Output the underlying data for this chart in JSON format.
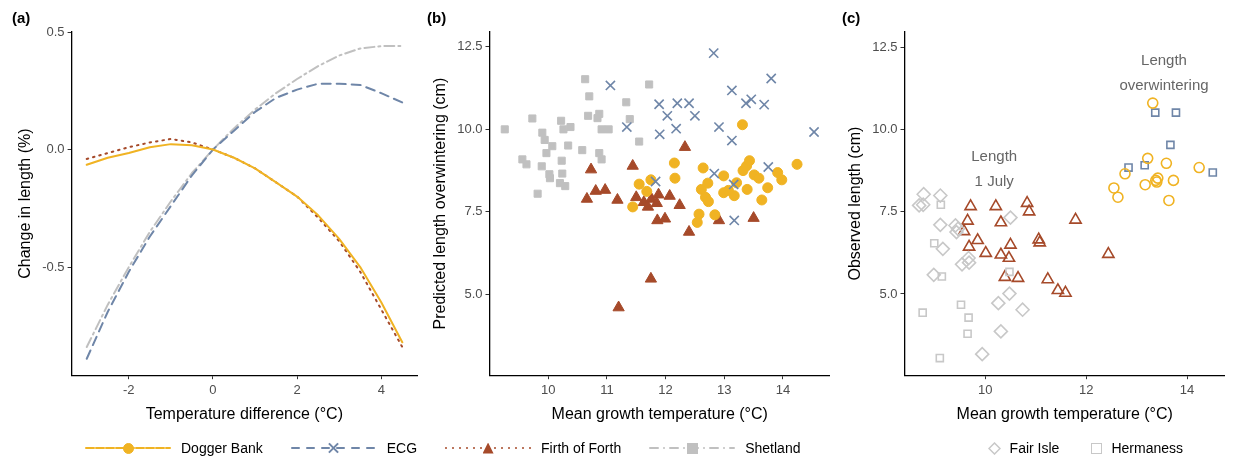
{
  "chart_data": [
    {
      "type": "line",
      "title": "(a)",
      "xlabel": "Temperature difference (°C)",
      "ylabel": "Change in length (%)",
      "xlim": [
        -3.36,
        4.85
      ],
      "ylim": [
        -0.96,
        0.5
      ],
      "xticks": [
        -2,
        0,
        2,
        4
      ],
      "yticks": [
        -0.5,
        {
          "value": 0,
          "label": "0.0"
        },
        0.5
      ],
      "x": [
        -3,
        -2.5,
        -2,
        -1.5,
        -1,
        -0.5,
        0,
        0.5,
        1,
        1.5,
        2,
        2.5,
        3,
        3.5,
        4,
        4.5
      ],
      "series": [
        {
          "color": "#f0b323",
          "line_style": "solid",
          "values": [
            -0.065,
            -0.035,
            -0.015,
            0.01,
            0.023,
            0.018,
            0,
            -0.035,
            -0.08,
            -0.14,
            -0.2,
            -0.28,
            -0.38,
            -0.5,
            -0.65,
            -0.82
          ]
        },
        {
          "color": "#6f86a8",
          "line_style": "dashed",
          "values": [
            -0.89,
            -0.69,
            -0.52,
            -0.37,
            -0.24,
            -0.11,
            0,
            0.08,
            0.16,
            0.22,
            0.255,
            0.28,
            0.28,
            0.275,
            0.24,
            0.2
          ]
        },
        {
          "color": "#a64a2a",
          "line_style": "dotted",
          "values": [
            -0.04,
            -0.015,
            0.01,
            0.03,
            0.045,
            0.03,
            0,
            -0.035,
            -0.08,
            -0.14,
            -0.2,
            -0.29,
            -0.39,
            -0.52,
            -0.68,
            -0.84
          ]
        },
        {
          "color": "#c0c0c0",
          "line_style": "dashdot",
          "values": [
            -0.84,
            -0.66,
            -0.5,
            -0.35,
            -0.22,
            -0.1,
            0,
            0.09,
            0.17,
            0.24,
            0.3,
            0.355,
            0.4,
            0.43,
            0.44,
            0.44
          ]
        }
      ]
    },
    {
      "type": "scatter",
      "title": "(b)",
      "xlabel": "Mean growth temperature (°C)",
      "ylabel": "Predicted length overwintering (cm)",
      "xlim": [
        9.0,
        14.8
      ],
      "ylim": [
        2.55,
        12.95
      ],
      "xticks": [
        10,
        11,
        12,
        13,
        14
      ],
      "yticks": [
        {
          "value": 5,
          "label": "5.0"
        },
        7.5,
        {
          "value": 10,
          "label": "10.0"
        },
        12.5
      ],
      "legend": "bottom",
      "series": [
        {
          "name": "Dogger Bank",
          "color": "#f0b323",
          "marker": "circle",
          "x": [
            11.44,
            11.55,
            11.68,
            11.75,
            12.15,
            12.16,
            12.64,
            12.61,
            12.72,
            12.68,
            12.73,
            12.57,
            12.54,
            12.84,
            12.99,
            12.99,
            13.17,
            13.21,
            13.07,
            13.31,
            13.32,
            13.38,
            13.43,
            13.39,
            13.51,
            13.59,
            13.74,
            13.64,
            13.91,
            13.98,
            14.24
          ],
          "values": [
            7.65,
            8.34,
            8.12,
            8.47,
            8.98,
            8.52,
            8.83,
            8.18,
            8.37,
            7.94,
            7.81,
            7.43,
            7.18,
            7.41,
            8.59,
            8.08,
            7.99,
            8.38,
            8.15,
            10.14,
            8.75,
            8.89,
            9.05,
            8.18,
            8.62,
            8.52,
            8.23,
            7.86,
            8.69,
            8.47,
            8.94
          ]
        },
        {
          "name": "ECG",
          "color": "#6f86a8",
          "marker": "cross",
          "x": [
            11.06,
            11.34,
            11.89,
            12.03,
            12.2,
            12.4,
            12.5,
            12.18,
            11.9,
            11.83,
            12.82,
            12.91,
            13.13,
            13.37,
            13.46,
            13.68,
            13.8,
            13.13,
            12.83,
            13.16,
            13.17,
            13.75,
            14.53
          ],
          "values": [
            11.33,
            10.07,
            10.76,
            10.41,
            10.79,
            10.79,
            10.41,
            10.02,
            9.85,
            8.42,
            12.31,
            10.07,
            11.18,
            10.79,
            10.91,
            10.75,
            11.54,
            9.66,
            8.66,
            8.33,
            7.24,
            8.86,
            9.92
          ]
        },
        {
          "name": "Firth of Forth",
          "color": "#a64a2a",
          "marker": "triangle",
          "x": [
            10.66,
            10.73,
            10.81,
            10.97,
            11.18,
            11.2,
            11.44,
            11.5,
            11.63,
            11.7,
            11.76,
            11.85,
            11.88,
            11.86,
            11.99,
            12.07,
            12.24,
            12.33,
            12.4,
            11.75,
            12.91,
            13.5
          ],
          "values": [
            7.89,
            8.78,
            8.13,
            8.16,
            7.86,
            4.6,
            8.89,
            7.94,
            7.79,
            7.65,
            7.89,
            7.76,
            8.02,
            7.24,
            7.29,
            7.98,
            7.7,
            9.46,
            6.89,
            5.47,
            7.24,
            7.31
          ]
        },
        {
          "name": "Shetland",
          "color": "#c0c0c0",
          "marker": "square",
          "x": [
            9.26,
            9.73,
            9.56,
            9.63,
            9.9,
            9.94,
            9.97,
            10.07,
            9.89,
            10.02,
            10.03,
            9.82,
            10.22,
            10.26,
            10.38,
            10.23,
            10.24,
            10.2,
            10.29,
            10.34,
            10.58,
            10.63,
            10.7,
            10.68,
            10.87,
            10.84,
            10.91,
            11.03,
            10.87,
            10.91,
            11.33,
            11.39,
            11.55,
            11.72
          ],
          "values": [
            10.0,
            10.33,
            9.09,
            8.94,
            9.9,
            9.68,
            9.28,
            9.49,
            8.88,
            8.64,
            8.52,
            8.05,
            10.26,
            10.0,
            10.07,
            9.05,
            8.66,
            8.37,
            8.28,
            9.51,
            9.37,
            11.52,
            11.0,
            10.41,
            10.47,
            10.34,
            10.0,
            10.0,
            9.28,
            9.09,
            10.82,
            10.31,
            9.63,
            11.36
          ]
        }
      ]
    },
    {
      "type": "scatter",
      "title": "(c)",
      "xlabel": "Mean growth temperature (°C)",
      "ylabel": "Observed length (cm)",
      "xlim": [
        8.4,
        14.75
      ],
      "ylim": [
        2.53,
        12.96
      ],
      "xticks": [
        10,
        12,
        14
      ],
      "yticks": [
        {
          "value": 5,
          "label": "5.0"
        },
        7.5,
        {
          "value": 10,
          "label": "10.0"
        },
        12.5
      ],
      "legend": "bottom",
      "annotations": [
        "Length\noverwintering",
        "Length\n1 July"
      ],
      "series": [
        {
          "name": "Fair Isle",
          "color": "#c8c8c8",
          "marker": "diamond",
          "x": [
            8.78,
            8.69,
            8.77,
            9.11,
            9.11,
            9.41,
            9.46,
            9.43,
            9.16,
            9.54,
            9.67,
            9.68,
            8.98,
            10.5,
            10.48,
            10.26,
            10.74,
            10.31,
            9.94
          ],
          "values": [
            8.03,
            7.69,
            7.71,
            7.99,
            7.1,
            7.08,
            6.98,
            6.88,
            6.37,
            5.9,
            6.09,
            5.95,
            5.58,
            7.32,
            5.01,
            4.72,
            4.52,
            3.86,
            3.17
          ]
        },
        {
          "name": "Hermaness",
          "color": "#c8c8c8",
          "marker": "square",
          "x": [
            9.12,
            8.99,
            9.14,
            8.76,
            9.52,
            9.67,
            9.65,
            9.1,
            10.48
          ],
          "values": [
            7.71,
            6.54,
            5.53,
            4.43,
            4.67,
            4.28,
            3.79,
            3.05,
            5.67
          ]
        },
        {
          "color": "#a64a2a",
          "marker": "triangle",
          "x": [
            9.71,
            9.65,
            9.58,
            9.68,
            9.85,
            10.01,
            10.21,
            10.31,
            10.31,
            10.47,
            10.5,
            10.39,
            10.65,
            10.83,
            10.87,
            11.06,
            11.08,
            11.24,
            11.44,
            11.59,
            11.79,
            12.44
          ],
          "values": [
            7.66,
            7.22,
            6.9,
            6.43,
            6.63,
            6.24,
            7.66,
            7.17,
            6.19,
            6.09,
            6.49,
            5.51,
            5.48,
            7.76,
            7.5,
            6.65,
            6.56,
            5.44,
            5.11,
            5.03,
            7.25,
            6.21
          ]
        },
        {
          "color": "#f0b323",
          "marker": "circle",
          "x": [
            13.32,
            12.77,
            13.22,
            12.55,
            12.63,
            13.17,
            13.38,
            13.42,
            13.4,
            13.59,
            13.73,
            13.64,
            14.24
          ],
          "values": [
            10.8,
            8.65,
            9.12,
            8.22,
            7.94,
            8.32,
            8.45,
            8.52,
            8.4,
            8.97,
            8.45,
            7.84,
            8.84
          ]
        },
        {
          "color": "#6f86a8",
          "marker": "square",
          "x": [
            13.37,
            13.78,
            13.67,
            12.84,
            13.16,
            14.51
          ],
          "values": [
            10.51,
            10.51,
            9.53,
            8.84,
            8.91,
            8.69
          ]
        }
      ]
    }
  ]
}
